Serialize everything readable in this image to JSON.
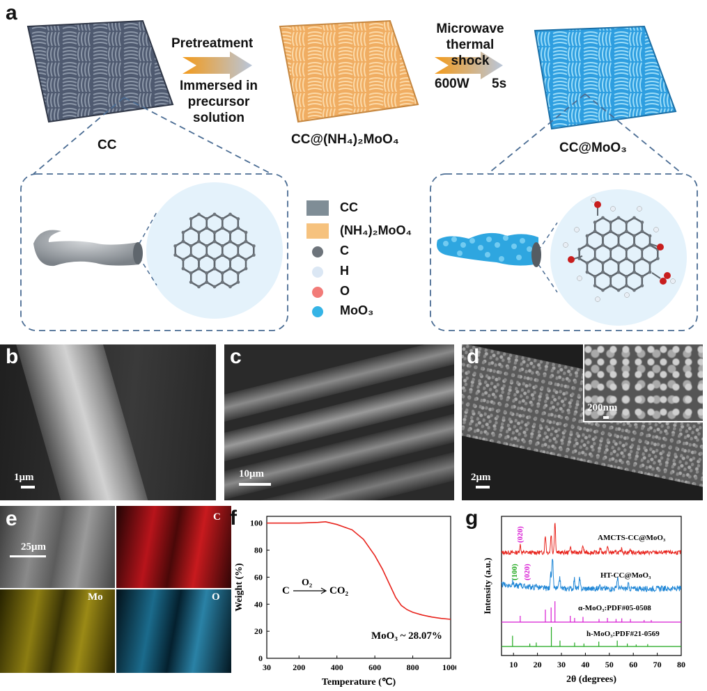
{
  "panel_a": {
    "letter": "a",
    "cc_label": "CC",
    "precursor_label": "CC@(NH₄)₂MoO₄",
    "product_label": "CC@MoO₃",
    "step1_top": "Pretreatment",
    "step1_bottom_1": "Immersed in",
    "step1_bottom_2": "precursor",
    "step1_bottom_3": "solution",
    "step2_top_1": "Microwave",
    "step2_top_2": "thermal shock",
    "step2_power": "600W",
    "step2_time": "5s",
    "legend": [
      {
        "label": "CC",
        "kind": "square",
        "color": "#7f8d96"
      },
      {
        "label": "(NH₄)₂MoO₄",
        "kind": "square",
        "color": "#f6c27e"
      },
      {
        "label": "C",
        "kind": "dot",
        "color": "#6d747b"
      },
      {
        "label": "H",
        "kind": "dot",
        "color": "#dbe7f4"
      },
      {
        "label": "O",
        "kind": "dot",
        "color": "#f27b78"
      },
      {
        "label": "MoO₃",
        "kind": "dot",
        "color": "#35b4e6"
      }
    ],
    "colors": {
      "cc": "#4f5a70",
      "precursor": "#f3b674",
      "product": "#3aa9e6",
      "zoom_bg": "#e4f2fb",
      "dash": "#4a6c93"
    }
  },
  "panel_b": {
    "letter": "b",
    "scale": "1μm"
  },
  "panel_c": {
    "letter": "c",
    "scale": "10μm"
  },
  "panel_d": {
    "letter": "d",
    "scale": "2μm",
    "inset_scale": "200nm"
  },
  "panel_e": {
    "letter": "e",
    "scale": "25μm",
    "maps": [
      "C",
      "Mo",
      "O"
    ]
  },
  "panel_f": {
    "letter": "f",
    "reaction_left": "C",
    "reaction_gas": "O₂",
    "reaction_right": "CO₂"
  },
  "panel_g": {
    "letter": "g"
  },
  "chart_data": [
    {
      "type": "line",
      "xlabel": "Temperature (℃)",
      "ylabel": "Weight (%)",
      "xlim": [
        30,
        1000
      ],
      "ylim": [
        0,
        105
      ],
      "xticks": [
        "30",
        "200",
        "400",
        "600",
        "800",
        "1000"
      ],
      "yticks": [
        "0",
        "20",
        "40",
        "60",
        "80",
        "100"
      ],
      "annotation": "MoO₃ ~ 28.07%",
      "color": "#e8231c",
      "x": [
        30,
        100,
        200,
        300,
        340,
        400,
        480,
        540,
        600,
        640,
        680,
        710,
        740,
        770,
        800,
        850,
        900,
        950,
        1000
      ],
      "y": [
        100,
        100,
        100,
        100.5,
        101,
        99,
        95,
        88,
        76,
        66,
        54,
        45,
        39,
        36,
        34,
        32,
        30.5,
        29.5,
        28.8
      ]
    },
    {
      "type": "line",
      "xlabel": "2θ (degrees)",
      "ylabel": "Intensity (a.u.)",
      "xlim": [
        5,
        80
      ],
      "xticks": [
        "10",
        "20",
        "30",
        "40",
        "50",
        "60",
        "70",
        "80"
      ],
      "series": [
        {
          "name": "AMCTS-CC@MoO₃",
          "color": "#e8231c",
          "peak_labels": [
            "(020)"
          ],
          "peaks": [
            [
              12.8,
              0.25
            ],
            [
              23.3,
              0.55
            ],
            [
              25.7,
              0.6
            ],
            [
              27.3,
              1.0
            ],
            [
              33.7,
              0.2
            ],
            [
              39.0,
              0.22
            ],
            [
              46.3,
              0.15
            ],
            [
              49.3,
              0.18
            ],
            [
              55.2,
              0.12
            ],
            [
              58.8,
              0.1
            ]
          ]
        },
        {
          "name": "HT-CC@MoO₃",
          "color": "#1f86d6",
          "peak_labels": [
            "(100)",
            "(020)"
          ],
          "peaks": [
            [
              9.7,
              0.12
            ],
            [
              13.0,
              0.1
            ],
            [
              19.6,
              0.1
            ],
            [
              25.5,
              0.45
            ],
            [
              26.3,
              1.0
            ],
            [
              29.3,
              0.35
            ],
            [
              35.4,
              0.3
            ],
            [
              37.6,
              0.3
            ],
            [
              46.0,
              0.2
            ],
            [
              53.4,
              0.35
            ],
            [
              58.0,
              0.15
            ]
          ]
        },
        {
          "name": "α-MoO₃:PDF#05-0508",
          "color": "#d81ad3",
          "peaks": [
            [
              12.8,
              0.3
            ],
            [
              23.3,
              0.6
            ],
            [
              25.7,
              0.7
            ],
            [
              27.3,
              1.0
            ],
            [
              33.7,
              0.3
            ],
            [
              35.5,
              0.2
            ],
            [
              39.0,
              0.25
            ],
            [
              45.7,
              0.15
            ],
            [
              49.2,
              0.2
            ],
            [
              52.8,
              0.15
            ],
            [
              55.2,
              0.18
            ],
            [
              58.8,
              0.15
            ],
            [
              64.5,
              0.1
            ],
            [
              67.5,
              0.1
            ]
          ]
        },
        {
          "name": "h-MoO₃:PDF#21-0569",
          "color": "#1fa81c",
          "peaks": [
            [
              9.6,
              0.55
            ],
            [
              16.8,
              0.15
            ],
            [
              19.5,
              0.2
            ],
            [
              25.8,
              1.0
            ],
            [
              29.4,
              0.3
            ],
            [
              35.5,
              0.2
            ],
            [
              39.4,
              0.15
            ],
            [
              45.6,
              0.25
            ],
            [
              53.3,
              0.3
            ],
            [
              57.5,
              0.15
            ],
            [
              61.2,
              0.1
            ],
            [
              66.0,
              0.12
            ]
          ]
        }
      ]
    }
  ]
}
